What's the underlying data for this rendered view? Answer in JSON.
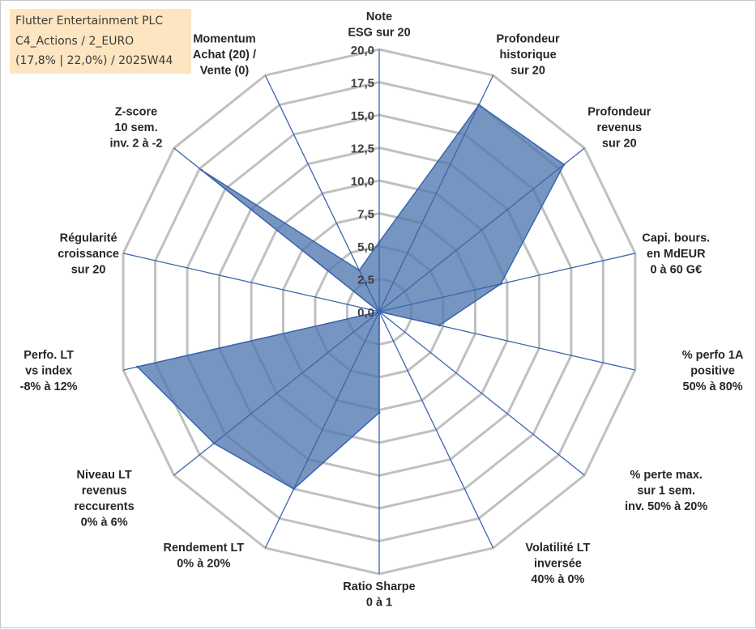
{
  "info_box": {
    "line1": "Flutter Entertainment PLC",
    "line2": "C4_Actions / 2_EURO",
    "line3": "(17,8% | 22,0%) / 2025W44"
  },
  "chart_data": {
    "type": "radar",
    "title": "",
    "rmin": 0,
    "rmax": 20,
    "ticks": [
      "0,0",
      "2,5",
      "5,0",
      "7,5",
      "10,0",
      "12,5",
      "15,0",
      "17,5",
      "20,0"
    ],
    "tick_values": [
      0,
      2.5,
      5,
      7.5,
      10,
      12.5,
      15,
      17.5,
      20
    ],
    "grid": true,
    "fill_color": "#4f78b0",
    "line_color": "#3a64ad",
    "grid_color": "#c0c0c0",
    "axes": [
      {
        "label": [
          "Note",
          "ESG sur 20"
        ]
      },
      {
        "label": [
          "Profondeur",
          "historique",
          "sur 20"
        ]
      },
      {
        "label": [
          "Profondeur",
          "revenus",
          "sur 20"
        ]
      },
      {
        "label": [
          "Capi. bours.",
          "en MdEUR",
          "0 à 60 G€"
        ]
      },
      {
        "label": [
          "% perfo 1A",
          "positive",
          "50% à 80%"
        ]
      },
      {
        "label": [
          "% perte max.",
          "sur 1 sem.",
          "inv. 50% à 20%"
        ]
      },
      {
        "label": [
          "Volatilité LT",
          "inversée",
          "40% à 0%"
        ]
      },
      {
        "label": [
          "Ratio Sharpe",
          "0 à 1"
        ]
      },
      {
        "label": [
          "Rendement LT",
          "0% à 20%"
        ]
      },
      {
        "label": [
          "Niveau LT",
          "revenus",
          "reccurents",
          "0% à 6%"
        ]
      },
      {
        "label": [
          "Perfo. LT",
          "vs index",
          "-8% à 12%"
        ]
      },
      {
        "label": [
          "Régularité",
          "croissance",
          "sur 20"
        ]
      },
      {
        "label": [
          "Z-score",
          "10 sem.",
          "inv. 2 à -2"
        ]
      },
      {
        "label": [
          "Momentum",
          "Achat (20) /",
          "Vente (0)"
        ]
      }
    ],
    "values": [
      5.3,
      17.5,
      18.0,
      9.5,
      4.7,
      0.0,
      0.0,
      7.7,
      15.0,
      16.1,
      18.9,
      0.0,
      17.3,
      3.5
    ]
  }
}
